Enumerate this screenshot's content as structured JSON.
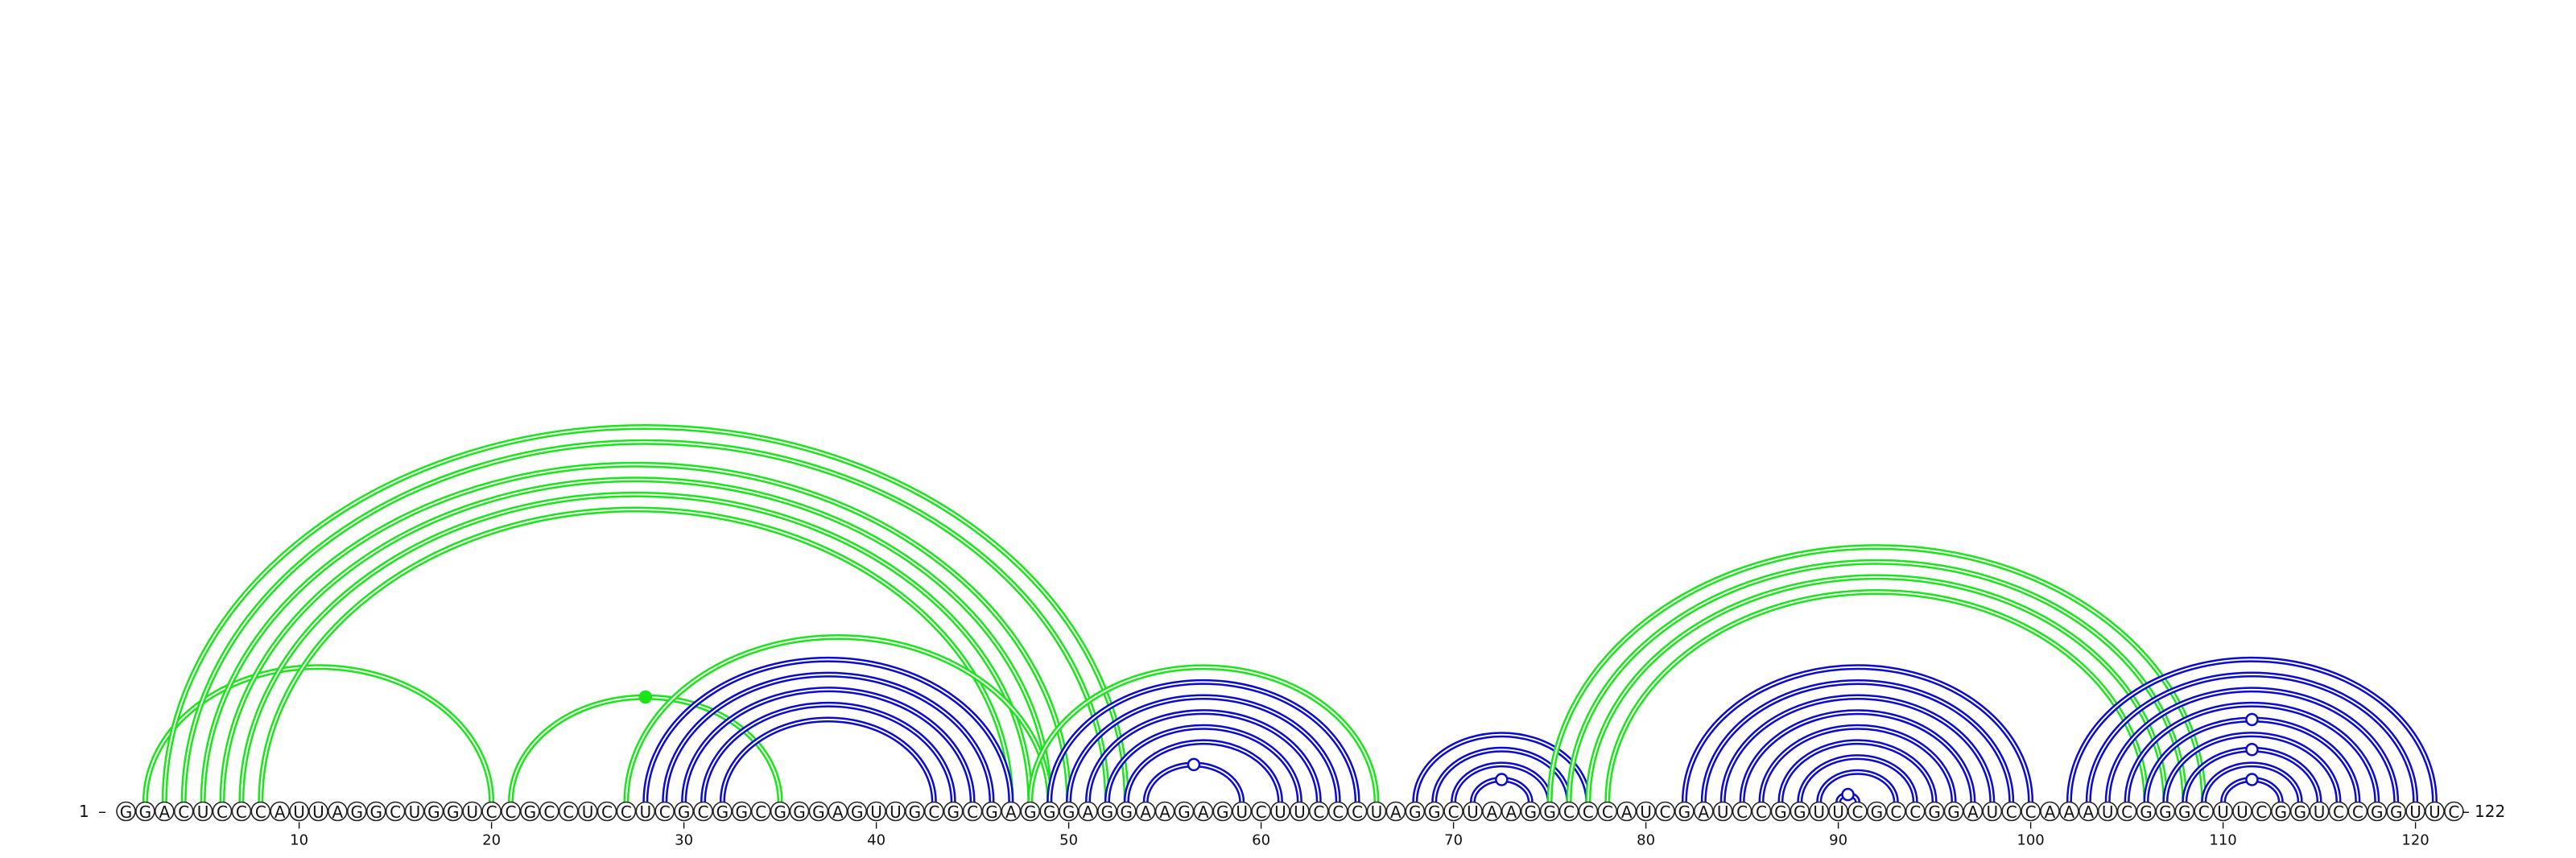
{
  "sequence": "GGACUCCCAUUAGGCUGGUCCGCCUCCUCGCGGCGGGAGUUGCGCGAGGGAGGAAGAGUCUUCCCUAGGCUAAGGCCCAUCGAUCCGGUUCGCCGGAUCCAAAUCGGGCUUCGGUCCGGUUC",
  "labels": {
    "start_number": "1",
    "start_dash": "–",
    "end_dash": "–",
    "end_number": "122"
  },
  "ticks": [
    {
      "position": 10,
      "label": "10"
    },
    {
      "position": 20,
      "label": "20"
    },
    {
      "position": 30,
      "label": "30"
    },
    {
      "position": 40,
      "label": "40"
    },
    {
      "position": 50,
      "label": "50"
    },
    {
      "position": 60,
      "label": "60"
    },
    {
      "position": 70,
      "label": "70"
    },
    {
      "position": 80,
      "label": "80"
    },
    {
      "position": 90,
      "label": "90"
    },
    {
      "position": 100,
      "label": "100"
    },
    {
      "position": 110,
      "label": "110"
    },
    {
      "position": 120,
      "label": "120"
    }
  ],
  "colors": {
    "green": "#19e619",
    "blue": "#0a0ad2",
    "text": "#111111"
  },
  "helices": [
    {
      "color": "green",
      "i": 2,
      "j": 20,
      "count": 1
    },
    {
      "color": "green",
      "i": 3,
      "j": 53,
      "count": 2
    },
    {
      "color": "green",
      "i": 5,
      "j": 50,
      "count": 4
    },
    {
      "color": "green",
      "i": 21,
      "j": 35,
      "count": 1
    },
    {
      "color": "green",
      "i": 27,
      "j": 49,
      "count": 1
    },
    {
      "color": "blue",
      "i": 28,
      "j": 47,
      "count": 5
    },
    {
      "color": "green",
      "i": 48,
      "j": 66,
      "count": 1
    },
    {
      "color": "blue",
      "i": 49,
      "j": 65,
      "count": 5
    },
    {
      "color": "blue",
      "i": 54,
      "j": 59,
      "count": 1
    },
    {
      "color": "blue",
      "i": 68,
      "j": 77,
      "count": 3
    },
    {
      "color": "blue",
      "i": 71,
      "j": 74,
      "count": 1
    },
    {
      "color": "green",
      "i": 75,
      "j": 109,
      "count": 4
    },
    {
      "color": "blue",
      "i": 82,
      "j": 100,
      "count": 8
    },
    {
      "color": "blue",
      "i": 90,
      "j": 91,
      "count": 1
    },
    {
      "color": "blue",
      "i": 102,
      "j": 121,
      "count": 4
    },
    {
      "color": "blue",
      "i": 106,
      "j": 117,
      "count": 4
    },
    {
      "color": "blue",
      "i": 110,
      "j": 113,
      "count": 1
    }
  ],
  "loop_markers": [
    {
      "color": "green",
      "position": 28,
      "filled": true
    },
    {
      "color": "blue",
      "position": 56.5,
      "filled": false
    },
    {
      "color": "blue",
      "position": 72.5,
      "filled": false
    },
    {
      "color": "blue",
      "position": 90.5,
      "filled": false
    },
    {
      "color": "blue",
      "position": 111.5,
      "filled": false
    },
    {
      "color": "blue",
      "position": 111.5,
      "filled": false
    },
    {
      "color": "blue",
      "position": 111.5,
      "filled": false
    }
  ]
}
